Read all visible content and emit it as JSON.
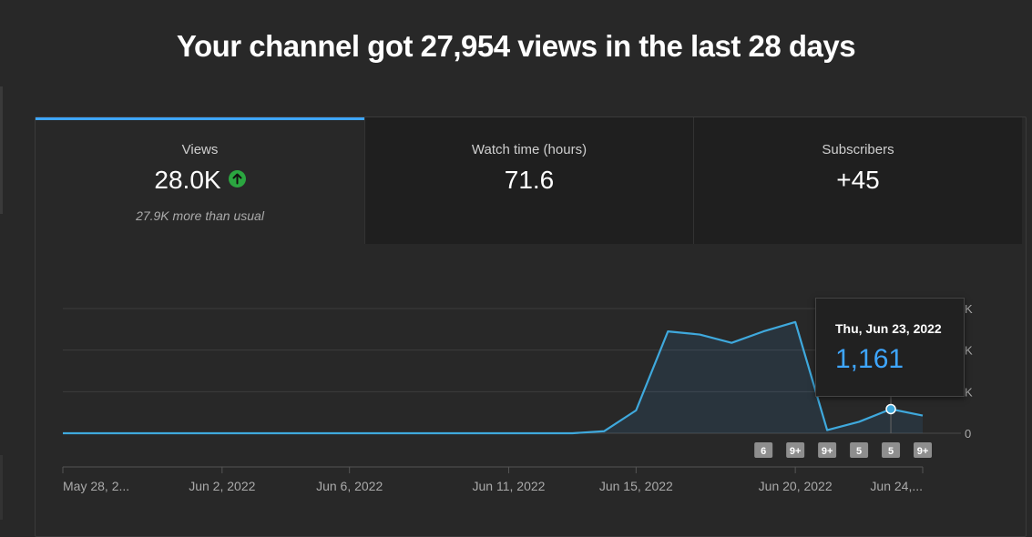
{
  "headline": "Your channel got 27,954 views in the last 28 days",
  "tabs": [
    {
      "label": "Views",
      "value": "28.0K",
      "note": "27.9K more than usual",
      "trend": "up"
    },
    {
      "label": "Watch time (hours)",
      "value": "71.6",
      "note": ""
    },
    {
      "label": "Subscribers",
      "value": "+45",
      "note": ""
    }
  ],
  "tooltip": {
    "date": "Thu, Jun 23, 2022",
    "value": "1,161"
  },
  "colors": {
    "accent": "#3ea6ff",
    "up": "#2ba640",
    "line": "#3fa9dd"
  },
  "chart_data": {
    "type": "area",
    "x": [
      "May 28",
      "May 29",
      "May 30",
      "May 31",
      "Jun 1",
      "Jun 2",
      "Jun 3",
      "Jun 4",
      "Jun 5",
      "Jun 6",
      "Jun 7",
      "Jun 8",
      "Jun 9",
      "Jun 10",
      "Jun 11",
      "Jun 12",
      "Jun 13",
      "Jun 14",
      "Jun 15",
      "Jun 16",
      "Jun 17",
      "Jun 18",
      "Jun 19",
      "Jun 20",
      "Jun 21",
      "Jun 22",
      "Jun 23",
      "Jun 24"
    ],
    "values": [
      0,
      0,
      0,
      0,
      0,
      0,
      0,
      0,
      0,
      0,
      0,
      0,
      0,
      0,
      0,
      0,
      0,
      100,
      1100,
      4900,
      4750,
      4350,
      4900,
      5350,
      150,
      550,
      1161,
      850
    ],
    "ylim": [
      0,
      6000
    ],
    "yticks_visible": [
      "0",
      "K",
      "K",
      "K"
    ],
    "xtick_labels": [
      {
        "index": 0,
        "label": "May 28, 2..."
      },
      {
        "index": 5,
        "label": "Jun 2, 2022"
      },
      {
        "index": 9,
        "label": "Jun 6, 2022"
      },
      {
        "index": 14,
        "label": "Jun 11, 2022"
      },
      {
        "index": 18,
        "label": "Jun 15, 2022"
      },
      {
        "index": 23,
        "label": "Jun 20, 2022"
      },
      {
        "index": 27,
        "label": "Jun 24,..."
      }
    ],
    "markers": [
      {
        "index": 22,
        "label": "6"
      },
      {
        "index": 23,
        "label": "9+"
      },
      {
        "index": 24,
        "label": "9+"
      },
      {
        "index": 25,
        "label": "5"
      },
      {
        "index": 26,
        "label": "5"
      },
      {
        "index": 27,
        "label": "9+"
      }
    ],
    "highlight_index": 26
  }
}
